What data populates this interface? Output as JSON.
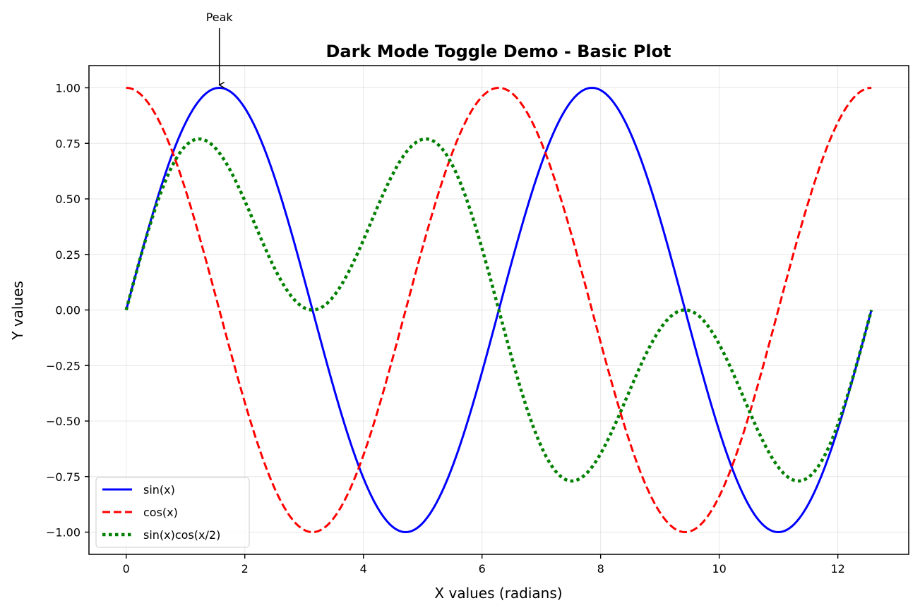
{
  "chart_data": {
    "type": "line",
    "title": "Dark Mode Toggle Demo - Basic Plot",
    "xlabel": "X values (radians)",
    "ylabel": "Y values",
    "xlim": [
      -0.628,
      13.195
    ],
    "ylim": [
      -1.1,
      1.1
    ],
    "x_ticks": [
      0,
      2,
      4,
      6,
      8,
      10,
      12
    ],
    "x_tick_labels": [
      "0",
      "2",
      "4",
      "6",
      "8",
      "10",
      "12"
    ],
    "y_ticks": [
      1.0,
      0.75,
      0.5,
      0.25,
      0.0,
      -0.25,
      -0.5,
      -0.75,
      -1.0
    ],
    "y_tick_labels": [
      "1.00",
      "0.75",
      "0.50",
      "0.25",
      "0.00",
      "−0.25",
      "−0.50",
      "−0.75",
      "−1.00"
    ],
    "grid": true,
    "legend_position": "lower-left",
    "x_range": [
      0,
      12.566
    ],
    "series": [
      {
        "name": "sin(x)",
        "function": "sin(x)",
        "color": "#0000ff",
        "style": "solid",
        "x": [
          0,
          0.785,
          1.571,
          2.356,
          3.142,
          3.927,
          4.712,
          5.498,
          6.283,
          7.069,
          7.854,
          8.639,
          9.425,
          10.21,
          10.996,
          11.781,
          12.566
        ],
        "values": [
          0.0,
          0.707,
          1.0,
          0.707,
          0.0,
          -0.707,
          -1.0,
          -0.707,
          0.0,
          0.707,
          1.0,
          0.707,
          0.0,
          -0.707,
          -1.0,
          -0.707,
          0.0
        ]
      },
      {
        "name": "cos(x)",
        "function": "cos(x)",
        "color": "#ff0000",
        "style": "dashed",
        "x": [
          0,
          0.785,
          1.571,
          2.356,
          3.142,
          3.927,
          4.712,
          5.498,
          6.283,
          7.069,
          7.854,
          8.639,
          9.425,
          10.21,
          10.996,
          11.781,
          12.566
        ],
        "values": [
          1.0,
          0.707,
          0.0,
          -0.707,
          -1.0,
          -0.707,
          0.0,
          0.707,
          1.0,
          0.707,
          0.0,
          -0.707,
          -1.0,
          -0.707,
          0.0,
          0.707,
          1.0
        ]
      },
      {
        "name": "sin(x)cos(x/2)",
        "function": "sin(x)*cos(x/2)",
        "color": "#008000",
        "style": "dotted",
        "x": [
          0,
          0.785,
          1.571,
          2.356,
          3.142,
          3.927,
          4.712,
          5.498,
          6.283,
          7.069,
          7.854,
          8.639,
          9.425,
          10.21,
          10.996,
          11.781,
          12.566
        ],
        "values": [
          0.0,
          0.653,
          0.707,
          0.271,
          0.0,
          0.271,
          0.707,
          0.653,
          0.0,
          -0.653,
          -0.707,
          -0.271,
          0.0,
          -0.271,
          -0.707,
          -0.653,
          0.0
        ]
      }
    ],
    "annotations": [
      {
        "text": "Peak",
        "x": 1.571,
        "y": 1.0,
        "arrow": true,
        "position": "above"
      }
    ]
  }
}
